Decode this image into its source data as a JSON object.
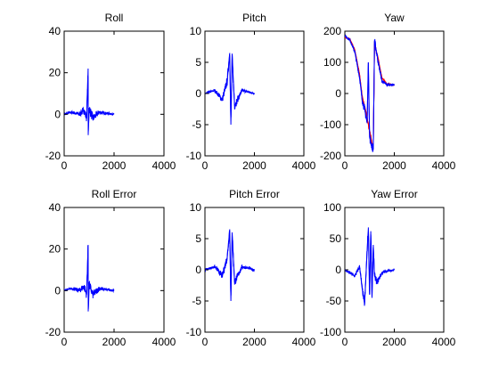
{
  "chart_data": [
    {
      "type": "line",
      "title": "Roll",
      "xlim": [
        0,
        4000
      ],
      "ylim": [
        -20,
        40
      ],
      "xticks": [
        0,
        2000,
        4000
      ],
      "yticks": [
        -20,
        0,
        20,
        40
      ],
      "x_range": [
        0,
        2000
      ],
      "grid": false,
      "series": [
        {
          "color": "#0000ff",
          "values": [
            [
              0,
              0
            ],
            [
              300,
              1
            ],
            [
              600,
              0
            ],
            [
              800,
              2
            ],
            [
              900,
              -2
            ],
            [
              960,
              22
            ],
            [
              965,
              -10
            ],
            [
              1000,
              3
            ],
            [
              1150,
              -2
            ],
            [
              1400,
              1
            ],
            [
              2000,
              0
            ]
          ]
        }
      ]
    },
    {
      "type": "line",
      "title": "Pitch",
      "xlim": [
        0,
        4000
      ],
      "ylim": [
        -10,
        10
      ],
      "xticks": [
        0,
        2000,
        4000
      ],
      "yticks": [
        -10,
        -5,
        0,
        5,
        10
      ],
      "x_range": [
        0,
        2000
      ],
      "grid": false,
      "series": [
        {
          "color": "#0000ff",
          "values": [
            [
              0,
              0
            ],
            [
              400,
              0.5
            ],
            [
              700,
              -1
            ],
            [
              900,
              2
            ],
            [
              1000,
              6.5
            ],
            [
              1050,
              -5
            ],
            [
              1100,
              6
            ],
            [
              1200,
              -2
            ],
            [
              1500,
              0.5
            ],
            [
              2000,
              0
            ]
          ]
        }
      ]
    },
    {
      "type": "line",
      "title": "Yaw",
      "xlim": [
        0,
        4000
      ],
      "ylim": [
        -200,
        200
      ],
      "xticks": [
        0,
        2000,
        4000
      ],
      "yticks": [
        -200,
        -100,
        0,
        100,
        200
      ],
      "x_range": [
        0,
        2000
      ],
      "grid": false,
      "series": [
        {
          "color": "#ff0000",
          "values": [
            [
              0,
              180
            ],
            [
              200,
              175
            ],
            [
              400,
              140
            ],
            [
              600,
              60
            ],
            [
              700,
              -10
            ],
            [
              800,
              -40
            ],
            [
              900,
              -80
            ],
            [
              1000,
              -120
            ],
            [
              1100,
              -160
            ],
            [
              1150,
              -175
            ],
            [
              1200,
              160
            ],
            [
              1350,
              110
            ],
            [
              1500,
              50
            ],
            [
              1700,
              30
            ],
            [
              2000,
              28
            ]
          ]
        },
        {
          "color": "#0000ff",
          "values": [
            [
              0,
              185
            ],
            [
              200,
              172
            ],
            [
              400,
              135
            ],
            [
              600,
              50
            ],
            [
              700,
              -20
            ],
            [
              800,
              -50
            ],
            [
              900,
              -95
            ],
            [
              950,
              100
            ],
            [
              1000,
              -140
            ],
            [
              1100,
              -170
            ],
            [
              1150,
              -180
            ],
            [
              1200,
              170
            ],
            [
              1350,
              100
            ],
            [
              1500,
              40
            ],
            [
              1700,
              28
            ],
            [
              2000,
              28
            ]
          ]
        }
      ]
    },
    {
      "type": "line",
      "title": "Roll Error",
      "xlim": [
        0,
        4000
      ],
      "ylim": [
        -20,
        40
      ],
      "xticks": [
        0,
        2000,
        4000
      ],
      "yticks": [
        -20,
        0,
        20,
        40
      ],
      "x_range": [
        0,
        2000
      ],
      "grid": false,
      "series": [
        {
          "color": "#0000ff",
          "values": [
            [
              0,
              0
            ],
            [
              300,
              1
            ],
            [
              600,
              0
            ],
            [
              800,
              2
            ],
            [
              900,
              -2
            ],
            [
              960,
              22
            ],
            [
              965,
              -10
            ],
            [
              1000,
              3
            ],
            [
              1150,
              -2
            ],
            [
              1400,
              1
            ],
            [
              2000,
              0
            ]
          ]
        }
      ]
    },
    {
      "type": "line",
      "title": "Pitch Error",
      "xlim": [
        0,
        4000
      ],
      "ylim": [
        -10,
        10
      ],
      "xticks": [
        0,
        2000,
        4000
      ],
      "yticks": [
        -10,
        -5,
        0,
        5,
        10
      ],
      "x_range": [
        0,
        2000
      ],
      "grid": false,
      "series": [
        {
          "color": "#0000ff",
          "values": [
            [
              0,
              0
            ],
            [
              400,
              0.5
            ],
            [
              700,
              -1
            ],
            [
              900,
              2
            ],
            [
              1000,
              6.5
            ],
            [
              1050,
              -5
            ],
            [
              1100,
              6
            ],
            [
              1200,
              -2
            ],
            [
              1500,
              0.5
            ],
            [
              2000,
              0
            ]
          ]
        }
      ]
    },
    {
      "type": "line",
      "title": "Yaw Error",
      "xlim": [
        0,
        4000
      ],
      "ylim": [
        -100,
        100
      ],
      "xticks": [
        0,
        2000,
        4000
      ],
      "yticks": [
        -100,
        -50,
        0,
        50,
        100
      ],
      "x_range": [
        0,
        2000
      ],
      "grid": false,
      "series": [
        {
          "color": "#0000ff",
          "values": [
            [
              0,
              0
            ],
            [
              200,
              -5
            ],
            [
              400,
              -10
            ],
            [
              600,
              5
            ],
            [
              700,
              -30
            ],
            [
              800,
              -55
            ],
            [
              900,
              30
            ],
            [
              950,
              68
            ],
            [
              1000,
              -40
            ],
            [
              1050,
              62
            ],
            [
              1100,
              -45
            ],
            [
              1150,
              40
            ],
            [
              1200,
              -10
            ],
            [
              1300,
              -20
            ],
            [
              1500,
              -5
            ],
            [
              1700,
              -2
            ],
            [
              2000,
              0
            ]
          ]
        }
      ]
    }
  ]
}
